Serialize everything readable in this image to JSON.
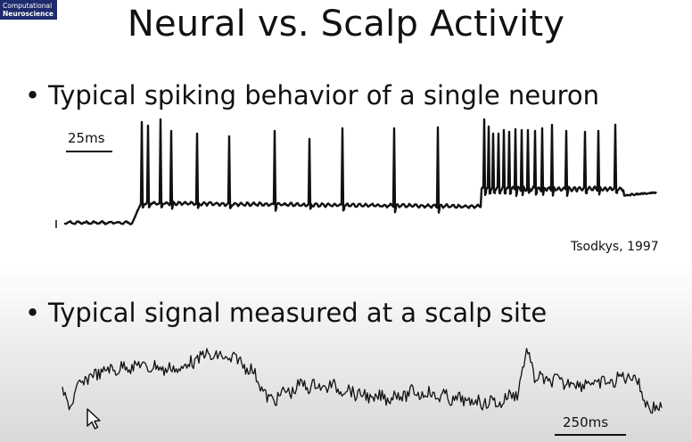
{
  "logo": {
    "line1": "Computational",
    "line2": "Neuroscience"
  },
  "title": "Neural vs. Scalp Activity",
  "bullets": [
    {
      "marker": "•",
      "text": "Typical spiking behavior of a single neuron"
    },
    {
      "marker": "•",
      "text": "Typical signal measured at a scalp site"
    }
  ],
  "neuron_scale": "25ms",
  "eeg_scale": "250ms",
  "citation": "Tsodkys, 1997",
  "colors": {
    "trace": "#111111",
    "logo_bg": "#1d2a6b"
  },
  "icons": {
    "cursor": "mouse-pointer-icon"
  }
}
